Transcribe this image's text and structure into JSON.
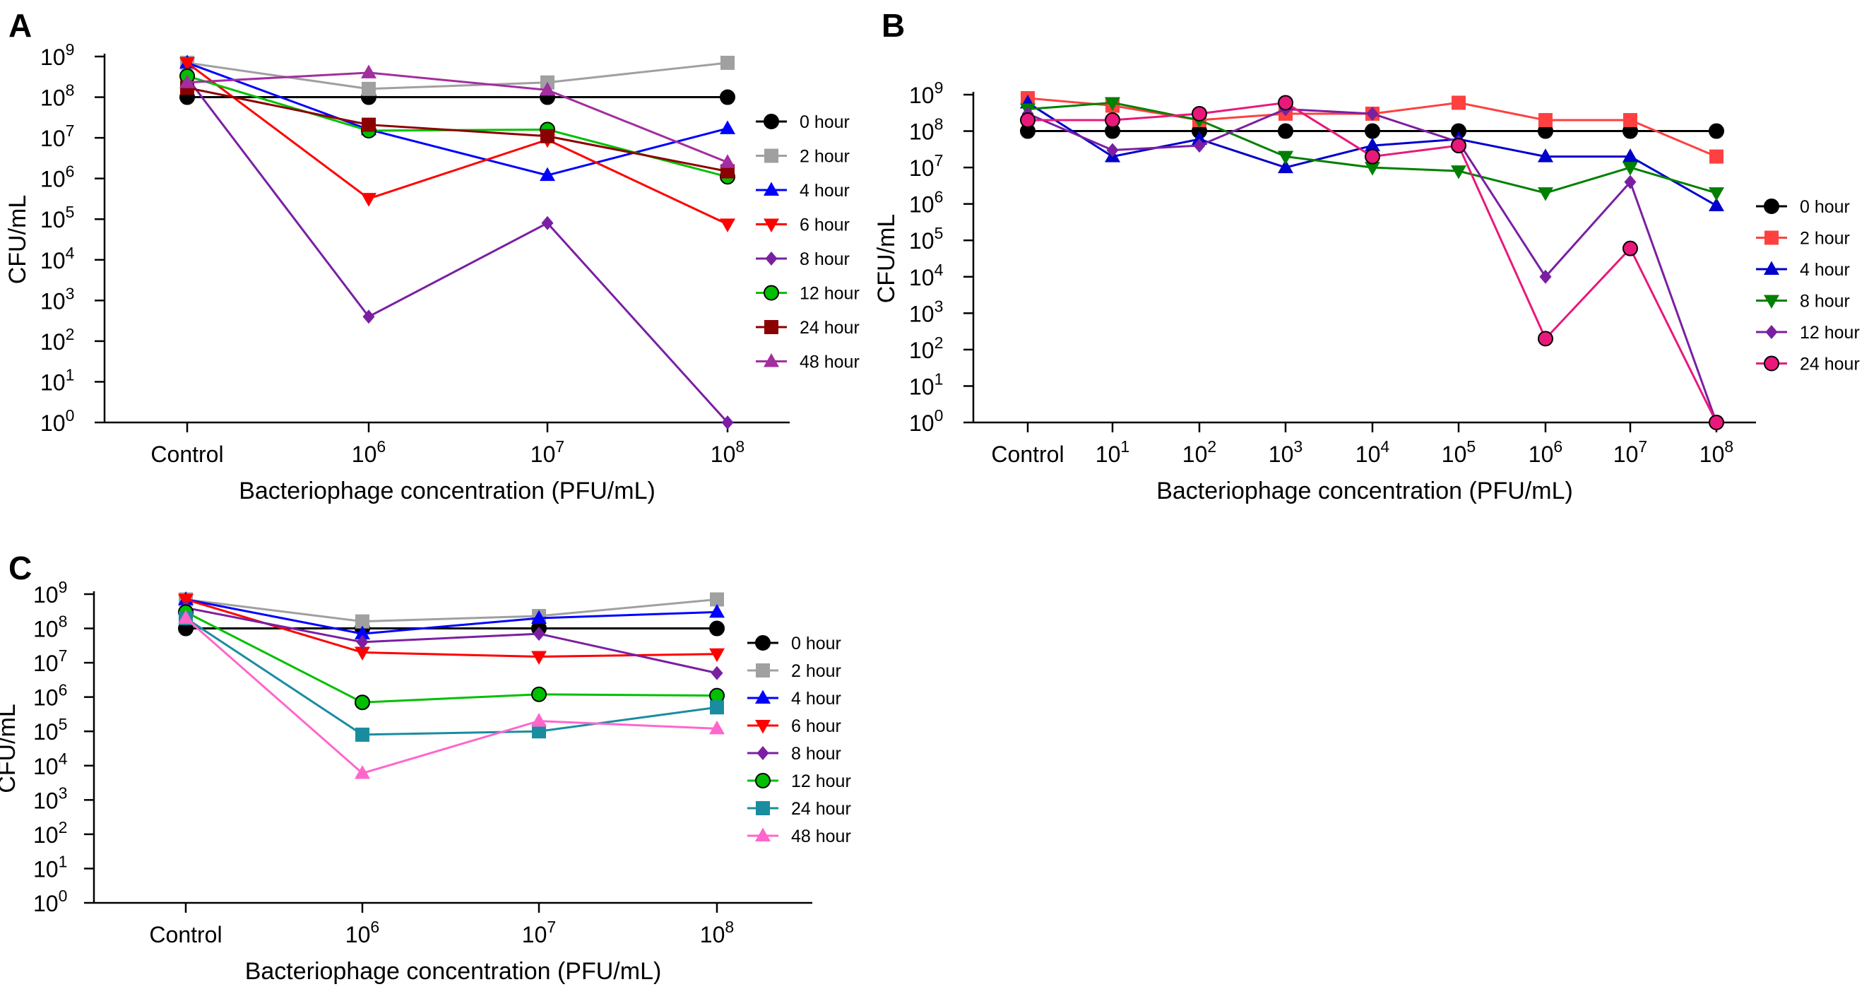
{
  "chart_data": [
    {
      "panel": "A",
      "type": "line",
      "y_scale": "log",
      "ylim": [
        1,
        1000000000
      ],
      "ylabel": "CFU/mL",
      "xlabel": "Bacteriophage concentration (PFU/mL)",
      "categories": [
        "Control",
        "10^6",
        "10^7",
        "10^8"
      ],
      "legend_position": "right",
      "series": [
        {
          "name": "0 hour",
          "color": "#000000",
          "marker": "circle",
          "values": [
            100000000,
            100000000,
            100000000,
            100000000
          ]
        },
        {
          "name": "2 hour",
          "color": "#a0a0a0",
          "marker": "square",
          "values": [
            700000000,
            160000000,
            230000000,
            700000000
          ]
        },
        {
          "name": "4 hour",
          "color": "#0000ff",
          "marker": "triangle-up",
          "values": [
            700000000,
            16000000,
            1200000,
            17000000
          ]
        },
        {
          "name": "6 hour",
          "color": "#ff0000",
          "marker": "triangle-down",
          "values": [
            700000000,
            320000,
            9000000,
            75000
          ]
        },
        {
          "name": "8 hour",
          "color": "#7a1fa2",
          "marker": "diamond",
          "values": [
            300000000,
            400,
            80000,
            1
          ]
        },
        {
          "name": "12 hour",
          "color": "#00c000",
          "marker": "circle",
          "values": [
            330000000,
            15000000,
            16000000,
            1100000
          ]
        },
        {
          "name": "24 hour",
          "color": "#8b0000",
          "marker": "square",
          "values": [
            170000000,
            21000000,
            11000000,
            1500000
          ]
        },
        {
          "name": "48 hour",
          "color": "#a22ea0",
          "marker": "triangle-up",
          "values": [
            230000000,
            400000000,
            150000000,
            2500000
          ]
        }
      ]
    },
    {
      "panel": "B",
      "type": "line",
      "y_scale": "log",
      "ylim": [
        1,
        1000000000
      ],
      "ylabel": "CFU/mL",
      "xlabel": "Bacteriophage concentration (PFU/mL)",
      "categories": [
        "Control",
        "10^1",
        "10^2",
        "10^3",
        "10^4",
        "10^5",
        "10^6",
        "10^7",
        "10^8"
      ],
      "legend_position": "right",
      "series": [
        {
          "name": "0 hour",
          "color": "#000000",
          "marker": "circle",
          "values": [
            100000000,
            100000000,
            100000000,
            100000000,
            100000000,
            100000000,
            100000000,
            100000000,
            100000000
          ]
        },
        {
          "name": "2 hour",
          "color": "#ff4040",
          "marker": "square",
          "values": [
            800000000,
            500000000,
            200000000,
            300000000,
            300000000,
            600000000,
            200000000,
            200000000,
            20000000
          ]
        },
        {
          "name": "4 hour",
          "color": "#0000cc",
          "marker": "triangle-up",
          "values": [
            600000000,
            20000000,
            60000000,
            10000000,
            40000000,
            60000000,
            20000000,
            20000000,
            900000
          ]
        },
        {
          "name": "8 hour",
          "color": "#008000",
          "marker": "triangle-down",
          "values": [
            400000000,
            600000000,
            200000000,
            20000000,
            10000000,
            8000000,
            2000000,
            10000000,
            2000000
          ]
        },
        {
          "name": "12 hour",
          "color": "#7a1fa2",
          "marker": "diamond",
          "values": [
            300000000,
            30000000,
            40000000,
            400000000,
            300000000,
            50000000,
            10000,
            4000000,
            1
          ]
        },
        {
          "name": "24 hour",
          "color": "#e8197a",
          "marker": "circle",
          "values": [
            200000000,
            200000000,
            300000000,
            600000000,
            20000000,
            40000000,
            200,
            60000,
            1
          ]
        }
      ]
    },
    {
      "panel": "C",
      "type": "line",
      "y_scale": "log",
      "ylim": [
        1,
        1000000000
      ],
      "ylabel": "CFU/mL",
      "xlabel": "Bacteriophage concentration (PFU/mL)",
      "categories": [
        "Control",
        "10^6",
        "10^7",
        "10^8"
      ],
      "legend_position": "right",
      "series": [
        {
          "name": "0 hour",
          "color": "#000000",
          "marker": "circle",
          "values": [
            100000000,
            100000000,
            100000000,
            100000000
          ]
        },
        {
          "name": "2 hour",
          "color": "#a0a0a0",
          "marker": "square",
          "values": [
            700000000,
            160000000,
            230000000,
            700000000
          ]
        },
        {
          "name": "4 hour",
          "color": "#0000ff",
          "marker": "triangle-up",
          "values": [
            700000000,
            70000000,
            200000000,
            300000000
          ]
        },
        {
          "name": "6 hour",
          "color": "#ff0000",
          "marker": "triangle-down",
          "values": [
            700000000,
            20000000,
            15000000,
            18000000
          ]
        },
        {
          "name": "8 hour",
          "color": "#7a1fa2",
          "marker": "diamond",
          "values": [
            400000000,
            40000000,
            70000000,
            5000000
          ]
        },
        {
          "name": "12 hour",
          "color": "#00c000",
          "marker": "circle",
          "values": [
            300000000,
            700000,
            1200000,
            1100000
          ]
        },
        {
          "name": "24 hour",
          "color": "#1a8ca0",
          "marker": "square",
          "values": [
            200000000,
            80000,
            100000,
            500000
          ]
        },
        {
          "name": "48 hour",
          "color": "#ff66cc",
          "marker": "triangle-up",
          "values": [
            200000000,
            6000,
            200000,
            120000
          ]
        }
      ]
    }
  ]
}
